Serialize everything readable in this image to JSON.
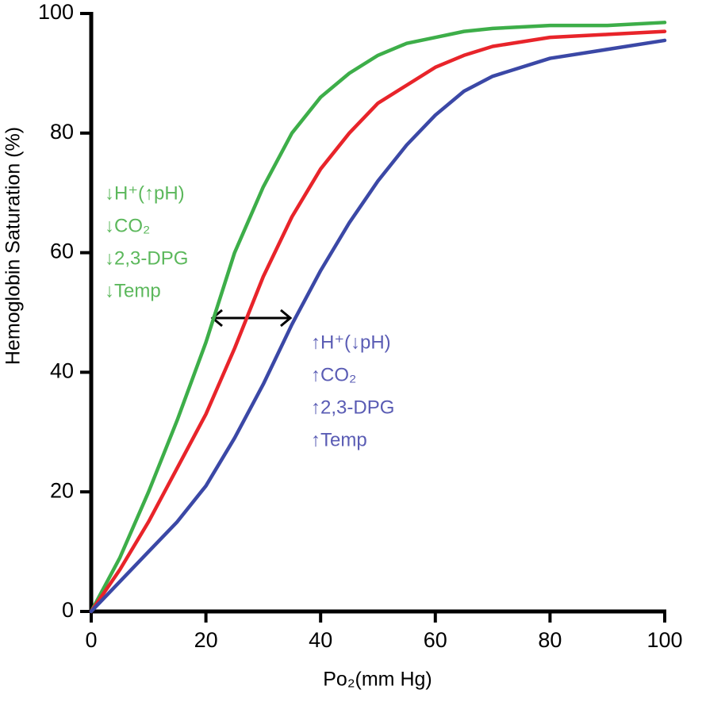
{
  "chart_data": {
    "type": "line",
    "x_label": "Po₂(mm Hg)",
    "y_label": "Hemoglobin Saturation (%)",
    "x": [
      0,
      5,
      10,
      15,
      20,
      25,
      30,
      35,
      40,
      45,
      50,
      55,
      60,
      65,
      70,
      80,
      90,
      100
    ],
    "series": [
      {
        "color": "#3dae49",
        "values": [
          0,
          9,
          20,
          32,
          45,
          60,
          71,
          80,
          86,
          90,
          93,
          95,
          96,
          97,
          97.5,
          98,
          98,
          98.5
        ]
      },
      {
        "color": "#e8242a",
        "values": [
          0,
          7,
          15,
          24,
          33,
          44,
          56,
          66,
          74,
          80,
          85,
          88,
          91,
          93,
          94.5,
          96,
          96.5,
          97
        ]
      },
      {
        "color": "#3b48a6",
        "values": [
          0,
          5,
          10,
          15,
          21,
          29,
          38,
          48,
          57,
          65,
          72,
          78,
          83,
          87,
          89.5,
          92.5,
          94,
          95.5
        ]
      }
    ],
    "annotations": [
      {
        "color": "#5cb85c",
        "lines": [
          "↓H⁺(↑pH)",
          "↓CO₂",
          "↓2,3-DPG",
          "↓Temp"
        ]
      },
      {
        "color": "#5a5cb4",
        "lines": [
          "↑H⁺(↓pH)",
          "↑CO₂",
          "↑2,3-DPG",
          "↑Temp"
        ]
      }
    ],
    "xlim": [
      0,
      100
    ],
    "ylim": [
      0,
      100
    ],
    "xticks": [
      0,
      20,
      40,
      60,
      80,
      100
    ],
    "yticks": [
      0,
      20,
      40,
      60,
      80,
      100
    ]
  }
}
